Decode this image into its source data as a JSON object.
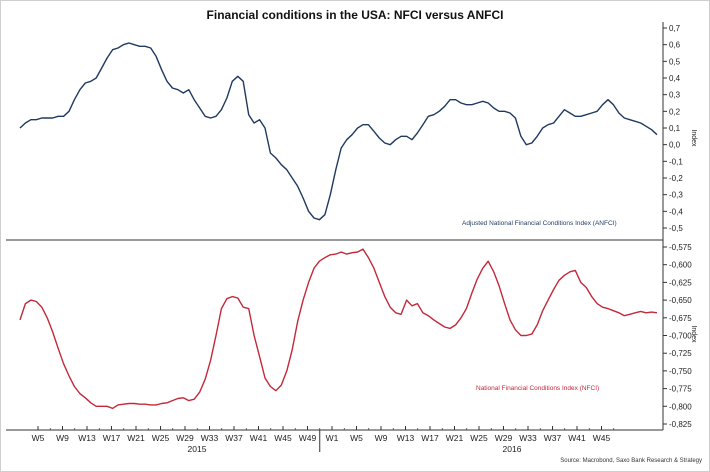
{
  "title": "Financial conditions in the USA: NFCI versus ANFCI",
  "source": "Source: Macrobond, Saxo Bank Research & Strategy",
  "chart_data": [
    {
      "type": "line",
      "name": "top-panel",
      "series": [
        {
          "name": "Adjusted National Financial Conditions Index (ANFCI)",
          "color": "#1f3a5f",
          "values": [
            0.1,
            0.13,
            0.15,
            0.15,
            0.16,
            0.16,
            0.16,
            0.17,
            0.17,
            0.2,
            0.27,
            0.33,
            0.37,
            0.38,
            0.4,
            0.46,
            0.52,
            0.57,
            0.58,
            0.6,
            0.61,
            0.6,
            0.59,
            0.59,
            0.58,
            0.53,
            0.45,
            0.38,
            0.34,
            0.33,
            0.31,
            0.33,
            0.27,
            0.22,
            0.17,
            0.16,
            0.17,
            0.21,
            0.28,
            0.38,
            0.41,
            0.38,
            0.18,
            0.13,
            0.15,
            0.1,
            -0.05,
            -0.08,
            -0.12,
            -0.15,
            -0.2,
            -0.25,
            -0.32,
            -0.4,
            -0.44,
            -0.45,
            -0.42,
            -0.3,
            -0.15,
            -0.02,
            0.03,
            0.06,
            0.1,
            0.12,
            0.12,
            0.08,
            0.04,
            0.01,
            0.0,
            0.03,
            0.05,
            0.05,
            0.03,
            0.07,
            0.12,
            0.17,
            0.18,
            0.2,
            0.23,
            0.27,
            0.27,
            0.25,
            0.24,
            0.24,
            0.25,
            0.26,
            0.25,
            0.22,
            0.2,
            0.2,
            0.19,
            0.16,
            0.05,
            0.0,
            0.01,
            0.05,
            0.1,
            0.12,
            0.13,
            0.17,
            0.21,
            0.19,
            0.17,
            0.17,
            0.18,
            0.19,
            0.2,
            0.24,
            0.27,
            0.24,
            0.19,
            0.16,
            0.15,
            0.14,
            0.13,
            0.11,
            0.09,
            0.06
          ]
        }
      ],
      "ylim": [
        -0.5,
        0.7
      ],
      "yticks": [
        "-0,5",
        "-0,4",
        "-0,3",
        "-0,2",
        "-0,1",
        "0,0",
        "0,1",
        "0,2",
        "0,3",
        "0,4",
        "0,5",
        "0,6",
        "0,7"
      ],
      "ylabel": "Index",
      "legend": "Adjusted National Financial Conditions Index (ANFCI)"
    },
    {
      "type": "line",
      "name": "bottom-panel",
      "series": [
        {
          "name": "National Financial Conditions Index (NFCI)",
          "color": "#c2293a",
          "values": [
            -0.678,
            -0.655,
            -0.65,
            -0.652,
            -0.66,
            -0.675,
            -0.695,
            -0.718,
            -0.74,
            -0.757,
            -0.772,
            -0.782,
            -0.788,
            -0.795,
            -0.8,
            -0.8,
            -0.8,
            -0.803,
            -0.798,
            -0.797,
            -0.796,
            -0.796,
            -0.797,
            -0.797,
            -0.798,
            -0.798,
            -0.796,
            -0.795,
            -0.792,
            -0.789,
            -0.788,
            -0.792,
            -0.79,
            -0.78,
            -0.762,
            -0.735,
            -0.7,
            -0.662,
            -0.648,
            -0.645,
            -0.647,
            -0.66,
            -0.662,
            -0.7,
            -0.73,
            -0.76,
            -0.772,
            -0.778,
            -0.77,
            -0.75,
            -0.72,
            -0.68,
            -0.65,
            -0.625,
            -0.605,
            -0.595,
            -0.59,
            -0.586,
            -0.585,
            -0.582,
            -0.585,
            -0.583,
            -0.582,
            -0.578,
            -0.59,
            -0.605,
            -0.625,
            -0.645,
            -0.66,
            -0.668,
            -0.67,
            -0.65,
            -0.658,
            -0.655,
            -0.668,
            -0.672,
            -0.678,
            -0.683,
            -0.688,
            -0.69,
            -0.685,
            -0.675,
            -0.662,
            -0.64,
            -0.62,
            -0.605,
            -0.595,
            -0.61,
            -0.63,
            -0.655,
            -0.678,
            -0.692,
            -0.7,
            -0.7,
            -0.698,
            -0.685,
            -0.665,
            -0.65,
            -0.635,
            -0.622,
            -0.615,
            -0.61,
            -0.608,
            -0.625,
            -0.632,
            -0.645,
            -0.655,
            -0.66,
            -0.662,
            -0.665,
            -0.668,
            -0.672,
            -0.67,
            -0.668,
            -0.666,
            -0.668,
            -0.667,
            -0.668
          ]
        }
      ],
      "ylim": [
        -0.825,
        -0.575
      ],
      "yticks": [
        "-0,825",
        "-0,800",
        "-0,775",
        "-0,750",
        "-0,725",
        "-0,700",
        "-0,675",
        "-0,650",
        "-0,625",
        "-0,600",
        "-0,575"
      ],
      "ylabel": "Index",
      "legend": "National Financial Conditions Index (NFCI)"
    }
  ],
  "x_axis": {
    "ticks": [
      "W5",
      "W9",
      "W13",
      "W17",
      "W21",
      "W25",
      "W29",
      "W33",
      "W37",
      "W41",
      "W45",
      "W49",
      "W1",
      "W5",
      "W9",
      "W13",
      "W17",
      "W21",
      "W25",
      "W29",
      "W33",
      "W37",
      "W41",
      "W45"
    ],
    "years": [
      "2015",
      "2016"
    ]
  }
}
